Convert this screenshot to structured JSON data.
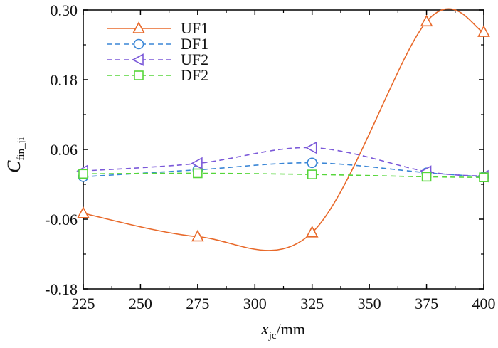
{
  "chart_data": {
    "type": "line",
    "xlabel": {
      "main": "x",
      "sub": "jc",
      "unit": "/mm"
    },
    "ylabel": {
      "main": "C",
      "sub": "fin_ji"
    },
    "xlim": [
      225,
      400
    ],
    "ylim": [
      -0.18,
      0.3
    ],
    "x_ticks": [
      "225",
      "250",
      "275",
      "300",
      "325",
      "350",
      "375",
      "400"
    ],
    "y_ticks": [
      "-0.18",
      "-0.06",
      "0.06",
      "0.18",
      "0.30"
    ],
    "x": [
      225,
      275,
      325,
      375,
      400
    ],
    "series": [
      {
        "name": "UF1",
        "values": [
          -0.05,
          -0.09,
          -0.083,
          0.28,
          0.262
        ],
        "color": "#e8692a",
        "marker": "triangle-up",
        "dash": "solid"
      },
      {
        "name": "DF1",
        "values": [
          0.013,
          0.025,
          0.037,
          0.02,
          0.013
        ],
        "color": "#3a86d6",
        "marker": "circle",
        "dash": "dashed"
      },
      {
        "name": "UF2",
        "values": [
          0.023,
          0.036,
          0.063,
          0.022,
          0.014
        ],
        "color": "#7b59d9",
        "marker": "triangle-left",
        "dash": "dashed"
      },
      {
        "name": "DF2",
        "values": [
          0.018,
          0.019,
          0.017,
          0.013,
          0.012
        ],
        "color": "#56d63a",
        "marker": "square",
        "dash": "dashed"
      }
    ],
    "legend_position": "top-left",
    "grid": false
  }
}
